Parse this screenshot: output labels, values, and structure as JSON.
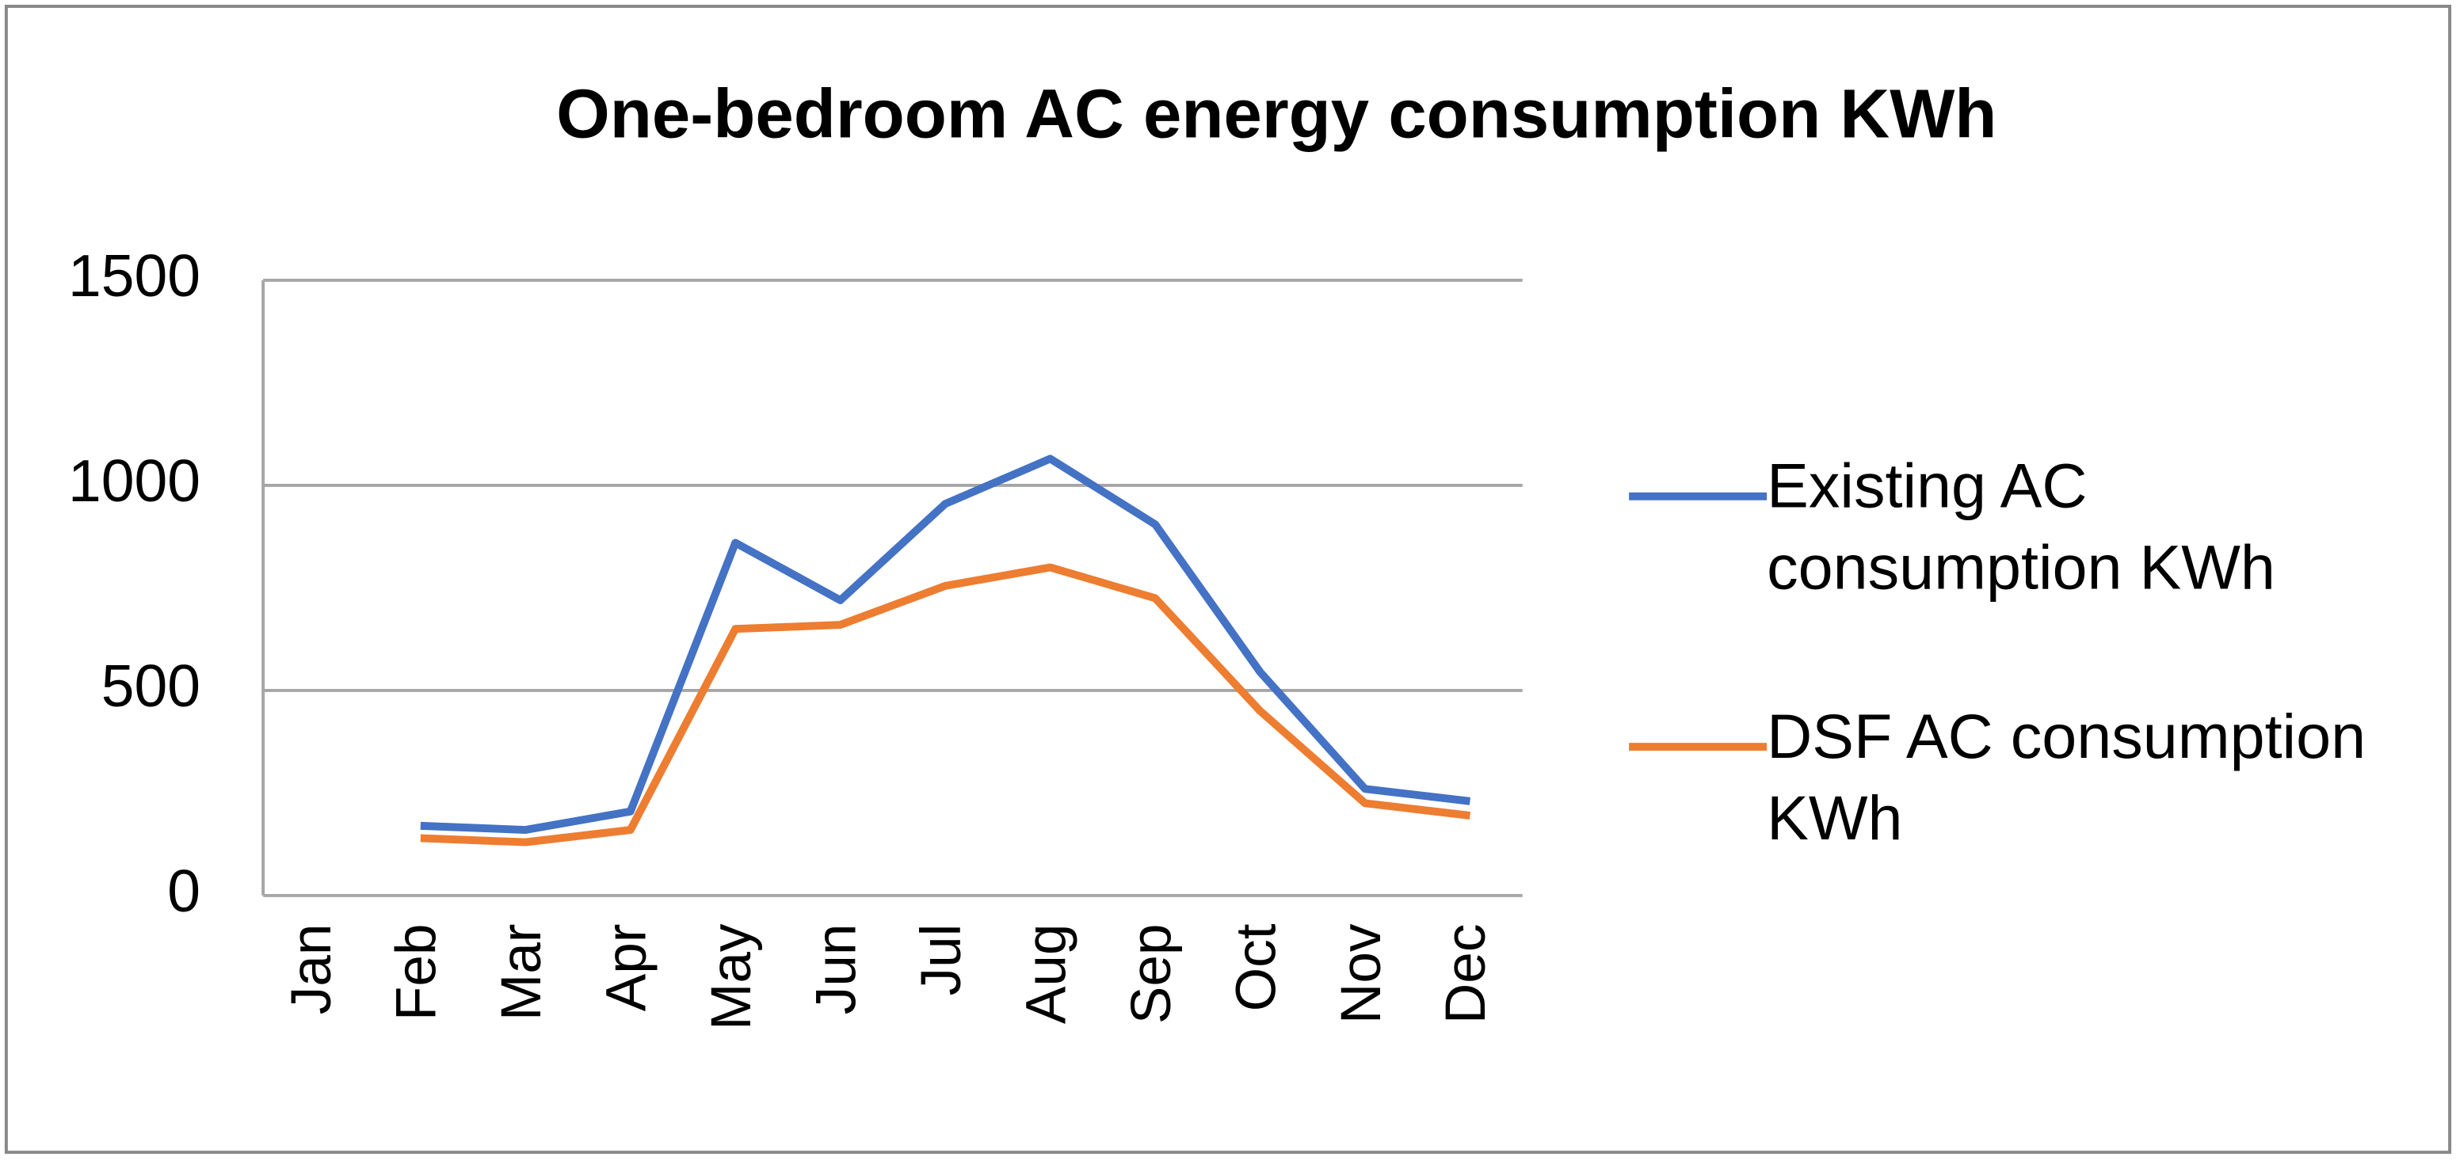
{
  "chart_data": {
    "type": "line",
    "title": "One-bedroom AC energy consumption KWh",
    "categories": [
      "Jan",
      "Feb",
      "Mar",
      "Apr",
      "May",
      "Jun",
      "Jul",
      "Aug",
      "Sep",
      "Oct",
      "Nov",
      "Dec"
    ],
    "series": [
      {
        "name": "Existing AC consumption KWh",
        "color": "#4472c4",
        "values": [
          null,
          170,
          160,
          205,
          860,
          720,
          955,
          1065,
          905,
          545,
          260,
          230
        ]
      },
      {
        "name": "DSF AC consumption KWh",
        "color": "#ed7d31",
        "values": [
          null,
          140,
          130,
          160,
          650,
          660,
          755,
          800,
          725,
          450,
          225,
          195
        ]
      }
    ],
    "ylim": [
      0,
      1500
    ],
    "yticks": [
      0,
      500,
      1000,
      1500
    ],
    "grid": true,
    "legend": "right"
  }
}
